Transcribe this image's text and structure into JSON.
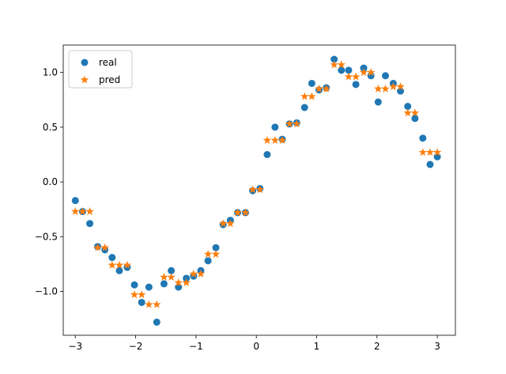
{
  "chart_data": {
    "type": "scatter",
    "xlim": [
      -3.2,
      3.3
    ],
    "ylim": [
      -1.4,
      1.25
    ],
    "xticks": [
      -3,
      -2,
      -1,
      0,
      1,
      2,
      3
    ],
    "yticks": [
      -1.0,
      -0.5,
      0.0,
      0.5,
      1.0
    ],
    "xtick_labels": [
      "−3",
      "−2",
      "−1",
      "0",
      "1",
      "2",
      "3"
    ],
    "ytick_labels": [
      "−1.0",
      "−0.5",
      "0.0",
      "0.5",
      "1.0"
    ],
    "grid": false,
    "legend_position": "upper-left",
    "series": [
      {
        "name": "real",
        "marker": "circle",
        "color": "#1f77b4",
        "points": [
          [
            -3.0,
            -0.17
          ],
          [
            -2.88,
            -0.27
          ],
          [
            -2.76,
            -0.38
          ],
          [
            -2.63,
            -0.59
          ],
          [
            -2.51,
            -0.62
          ],
          [
            -2.39,
            -0.69
          ],
          [
            -2.27,
            -0.81
          ],
          [
            -2.14,
            -0.78
          ],
          [
            -2.02,
            -0.94
          ],
          [
            -1.9,
            -1.1
          ],
          [
            -1.78,
            -0.96
          ],
          [
            -1.65,
            -1.28
          ],
          [
            -1.53,
            -0.93
          ],
          [
            -1.41,
            -0.81
          ],
          [
            -1.29,
            -0.96
          ],
          [
            -1.16,
            -0.88
          ],
          [
            -1.04,
            -0.86
          ],
          [
            -0.92,
            -0.81
          ],
          [
            -0.8,
            -0.72
          ],
          [
            -0.67,
            -0.6
          ],
          [
            -0.55,
            -0.39
          ],
          [
            -0.43,
            -0.35
          ],
          [
            -0.31,
            -0.28
          ],
          [
            -0.18,
            -0.28
          ],
          [
            -0.06,
            -0.08
          ],
          [
            0.06,
            -0.06
          ],
          [
            0.18,
            0.25
          ],
          [
            0.31,
            0.5
          ],
          [
            0.43,
            0.39
          ],
          [
            0.55,
            0.53
          ],
          [
            0.67,
            0.54
          ],
          [
            0.8,
            0.68
          ],
          [
            0.92,
            0.9
          ],
          [
            1.04,
            0.84
          ],
          [
            1.16,
            0.86
          ],
          [
            1.29,
            1.12
          ],
          [
            1.41,
            1.02
          ],
          [
            1.53,
            1.02
          ],
          [
            1.65,
            0.89
          ],
          [
            1.78,
            1.04
          ],
          [
            1.9,
            0.97
          ],
          [
            2.02,
            0.73
          ],
          [
            2.14,
            0.97
          ],
          [
            2.27,
            0.9
          ],
          [
            2.39,
            0.83
          ],
          [
            2.51,
            0.69
          ],
          [
            2.63,
            0.58
          ],
          [
            2.76,
            0.4
          ],
          [
            2.88,
            0.16
          ],
          [
            3.0,
            0.23
          ]
        ]
      },
      {
        "name": "pred",
        "marker": "star",
        "color": "#ff7f0e",
        "points": [
          [
            -3.0,
            -0.27
          ],
          [
            -2.88,
            -0.27
          ],
          [
            -2.76,
            -0.27
          ],
          [
            -2.63,
            -0.6
          ],
          [
            -2.51,
            -0.6
          ],
          [
            -2.39,
            -0.76
          ],
          [
            -2.27,
            -0.76
          ],
          [
            -2.14,
            -0.76
          ],
          [
            -2.02,
            -1.03
          ],
          [
            -1.9,
            -1.03
          ],
          [
            -1.78,
            -1.12
          ],
          [
            -1.65,
            -1.12
          ],
          [
            -1.53,
            -0.87
          ],
          [
            -1.41,
            -0.87
          ],
          [
            -1.29,
            -0.92
          ],
          [
            -1.16,
            -0.92
          ],
          [
            -1.04,
            -0.84
          ],
          [
            -0.92,
            -0.84
          ],
          [
            -0.8,
            -0.66
          ],
          [
            -0.67,
            -0.66
          ],
          [
            -0.55,
            -0.38
          ],
          [
            -0.43,
            -0.38
          ],
          [
            -0.31,
            -0.28
          ],
          [
            -0.18,
            -0.28
          ],
          [
            -0.06,
            -0.07
          ],
          [
            0.06,
            -0.07
          ],
          [
            0.18,
            0.38
          ],
          [
            0.31,
            0.38
          ],
          [
            0.43,
            0.38
          ],
          [
            0.55,
            0.53
          ],
          [
            0.67,
            0.53
          ],
          [
            0.8,
            0.78
          ],
          [
            0.92,
            0.78
          ],
          [
            1.04,
            0.85
          ],
          [
            1.16,
            0.85
          ],
          [
            1.29,
            1.07
          ],
          [
            1.41,
            1.07
          ],
          [
            1.53,
            0.96
          ],
          [
            1.65,
            0.96
          ],
          [
            1.78,
            1.0
          ],
          [
            1.9,
            1.0
          ],
          [
            2.02,
            0.85
          ],
          [
            2.14,
            0.85
          ],
          [
            2.27,
            0.87
          ],
          [
            2.39,
            0.87
          ],
          [
            2.51,
            0.63
          ],
          [
            2.63,
            0.63
          ],
          [
            2.76,
            0.27
          ],
          [
            2.88,
            0.27
          ],
          [
            3.0,
            0.27
          ]
        ]
      }
    ]
  }
}
